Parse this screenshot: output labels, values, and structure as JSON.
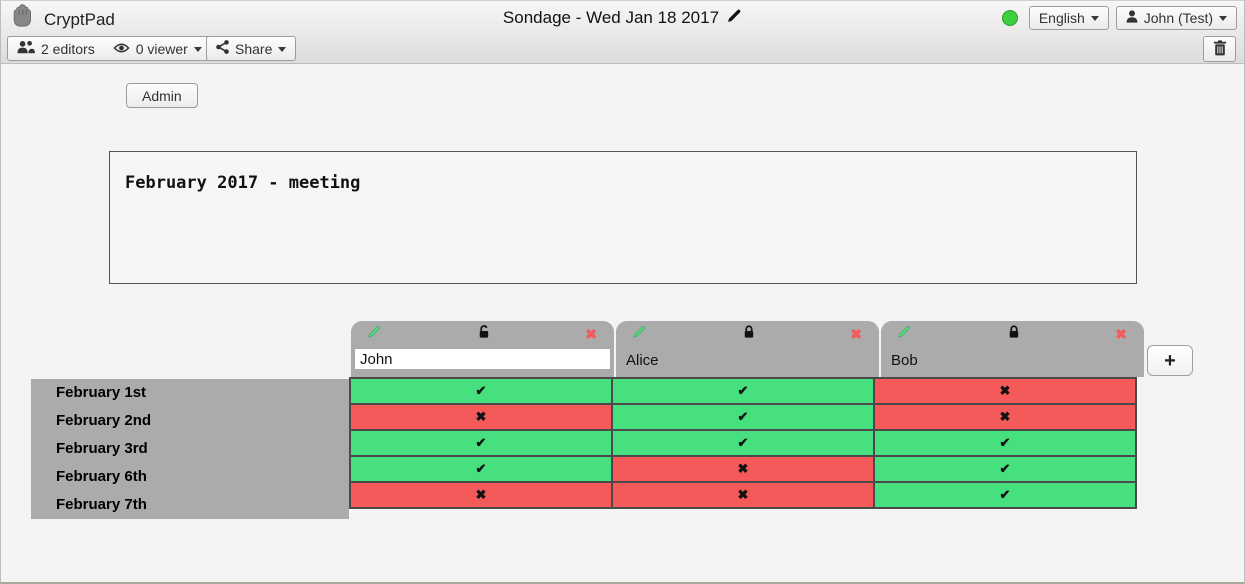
{
  "topbar": {
    "app_name": "CryptPad",
    "title": "Sondage - Wed Jan 18 2017",
    "language_label": "English",
    "user_label": "John (Test)",
    "status_color": "#3ecf3e"
  },
  "toolbar": {
    "editors_label": "2 editors",
    "viewers_label": "0 viewer",
    "share_label": "Share"
  },
  "admin_label": "Admin",
  "description": "February 2017 - meeting",
  "poll": {
    "columns": [
      {
        "name": "John",
        "locked": false
      },
      {
        "name": "Alice",
        "locked": true
      },
      {
        "name": "Bob",
        "locked": true
      }
    ],
    "rows": [
      "February 1st",
      "February 2nd",
      "February 3rd",
      "February 6th",
      "February 7th"
    ],
    "cells": [
      [
        "yes",
        "yes",
        "no"
      ],
      [
        "no",
        "yes",
        "no"
      ],
      [
        "yes",
        "yes",
        "yes"
      ],
      [
        "yes",
        "no",
        "yes"
      ],
      [
        "no",
        "no",
        "yes"
      ]
    ],
    "colors": {
      "yes": "#46e07e",
      "no": "#f55a5a"
    },
    "remove_column_glyph": "✖",
    "add_column_label": "+"
  },
  "glyphs": {
    "check": "✔",
    "cross": "✖"
  }
}
